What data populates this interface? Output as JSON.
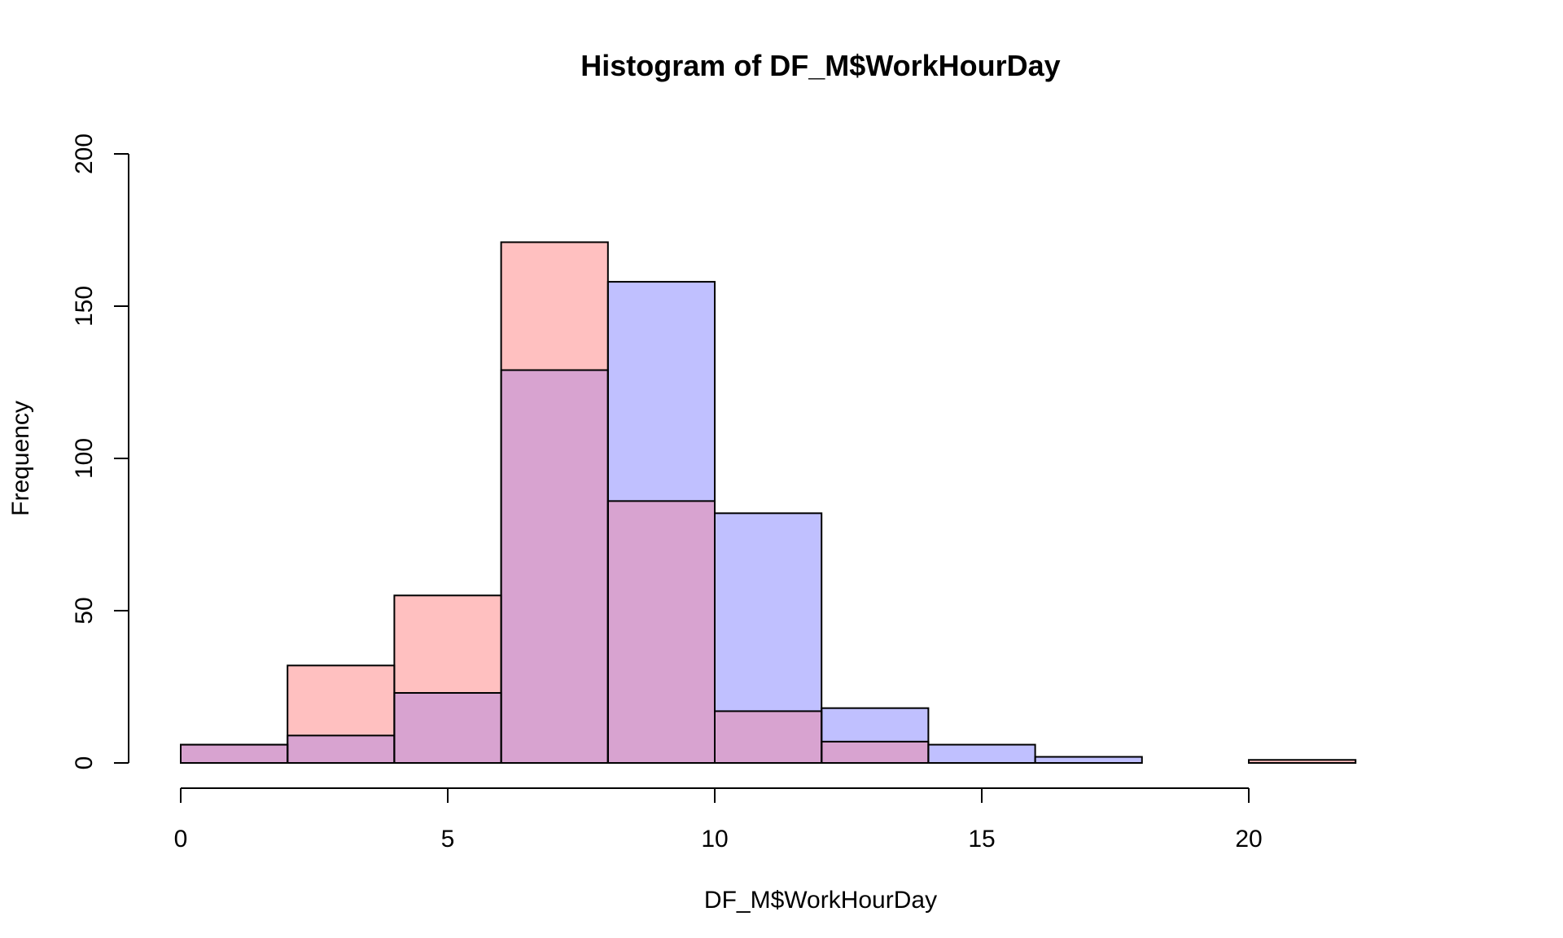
{
  "chart_data": {
    "type": "bar",
    "title": "Histogram of DF_M$WorkHourDay",
    "xlabel": "DF_M$WorkHourDay",
    "ylabel": "Frequency",
    "xlim": [
      0,
      22
    ],
    "ylim": [
      0,
      200
    ],
    "x_ticks": [
      0,
      5,
      10,
      15,
      20
    ],
    "y_ticks": [
      0,
      50,
      100,
      150,
      200
    ],
    "bin_edges": [
      0,
      2,
      4,
      6,
      8,
      10,
      12,
      14,
      16,
      18,
      20,
      22
    ],
    "grid": false,
    "series": [
      {
        "color": "#FFC0C0",
        "alpha": 0.8,
        "values": [
          6,
          32,
          55,
          171,
          86,
          17,
          7,
          0,
          0,
          0,
          1
        ]
      },
      {
        "color": "#C0C0FF",
        "alpha": 0.8,
        "values": [
          6,
          9,
          23,
          129,
          158,
          82,
          18,
          6,
          2,
          0,
          0
        ]
      }
    ],
    "overlap_color": "#D8A3D0"
  }
}
